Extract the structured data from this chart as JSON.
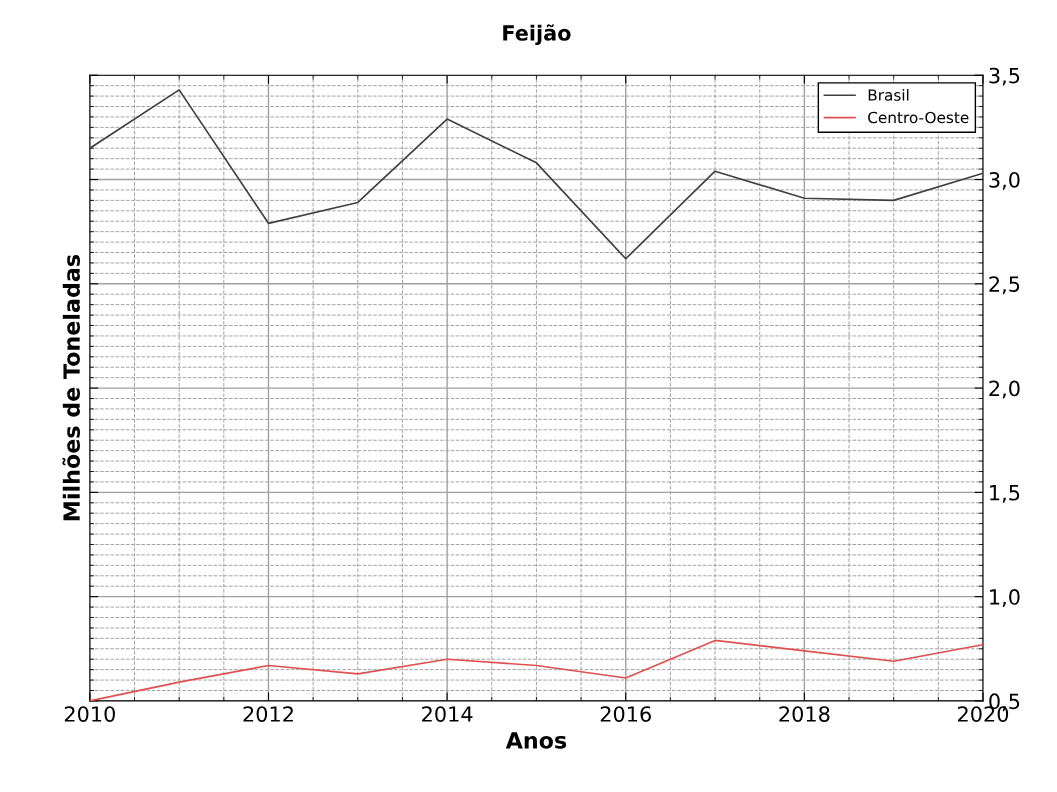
{
  "chart_data": {
    "type": "line",
    "title": "Feijão",
    "xlabel": "Anos",
    "ylabel": "Milhões de Toneladas",
    "x": [
      2010,
      2011,
      2012,
      2013,
      2014,
      2015,
      2016,
      2017,
      2018,
      2019,
      2020
    ],
    "series": [
      {
        "name": "Brasil",
        "color": "#404040",
        "values": [
          3.15,
          3.43,
          2.79,
          2.89,
          3.29,
          3.08,
          2.62,
          3.04,
          2.91,
          2.9,
          3.03
        ]
      },
      {
        "name": "Centro-Oeste",
        "color": "#e05050",
        "values": [
          0.5,
          0.59,
          0.67,
          0.63,
          0.7,
          0.67,
          0.61,
          0.79,
          0.74,
          0.69,
          0.77
        ]
      }
    ],
    "xlim": [
      2010,
      2020
    ],
    "xticks": [
      2010,
      2012,
      2014,
      2016,
      2018,
      2020
    ],
    "ylim": [
      0.5,
      3.5
    ],
    "yticks": [
      {
        "value": 0.5,
        "label": "0,5"
      },
      {
        "value": 1.0,
        "label": "1,0"
      },
      {
        "value": 1.5,
        "label": "1,5"
      },
      {
        "value": 2.0,
        "label": "2,0"
      },
      {
        "value": 2.5,
        "label": "2,5"
      },
      {
        "value": 3.0,
        "label": "3,0"
      },
      {
        "value": 3.5,
        "label": "3,5"
      }
    ],
    "grid": true,
    "legend": "top right",
    "marker": "none",
    "line_style": "solid"
  }
}
